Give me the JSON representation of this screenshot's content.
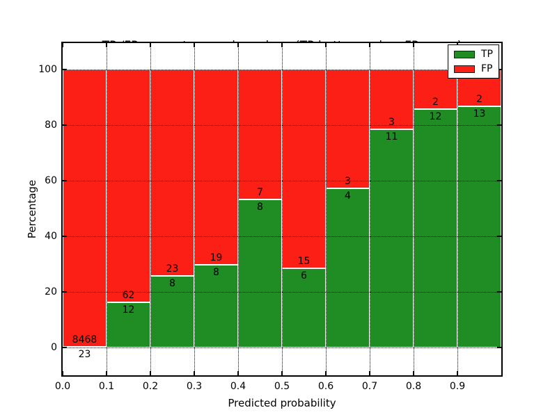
{
  "title": {
    "line1": "TP /FP percentage and numbers (TP-bottom value, FP-upper)",
    "line2": "from among 8709 submitted L50-type contacts"
  },
  "chart_data": {
    "type": "bar",
    "stacked": true,
    "title": "TP /FP percentage and numbers (TP-bottom value, FP-upper)\nfrom among 8709 submitted L50-type contacts",
    "xlabel": "Predicted probability",
    "ylabel": "Percentage",
    "total_contacts": 8709,
    "categories": [
      "0.0-0.1",
      "0.1-0.2",
      "0.2-0.3",
      "0.3-0.4",
      "0.4-0.5",
      "0.5-0.6",
      "0.6-0.7",
      "0.7-0.8",
      "0.8-0.9",
      "0.9-1.0"
    ],
    "series": [
      {
        "name": "TP",
        "color": "#1f8c24",
        "counts": [
          23,
          12,
          8,
          8,
          8,
          6,
          4,
          11,
          12,
          13
        ],
        "percent": [
          0.27,
          16.22,
          25.81,
          29.63,
          53.33,
          28.57,
          57.14,
          78.57,
          85.71,
          86.67
        ]
      },
      {
        "name": "FP",
        "color": "#fb1f15",
        "counts": [
          8468,
          62,
          23,
          19,
          7,
          15,
          3,
          3,
          2,
          2
        ],
        "percent": [
          99.73,
          83.78,
          74.19,
          70.37,
          46.67,
          71.43,
          42.86,
          21.43,
          14.29,
          13.33
        ]
      }
    ],
    "x_tick_labels": [
      "0.0",
      "0.1",
      "0.2",
      "0.3",
      "0.4",
      "0.5",
      "0.6",
      "0.7",
      "0.8",
      "0.9"
    ],
    "y_ticks": [
      0,
      20,
      40,
      60,
      80,
      100
    ],
    "xlim": [
      0.0,
      1.0
    ],
    "ylim": [
      -10,
      109.5
    ],
    "grid": true,
    "legend": {
      "position": "upper right",
      "entries": [
        "TP",
        "FP"
      ]
    }
  }
}
